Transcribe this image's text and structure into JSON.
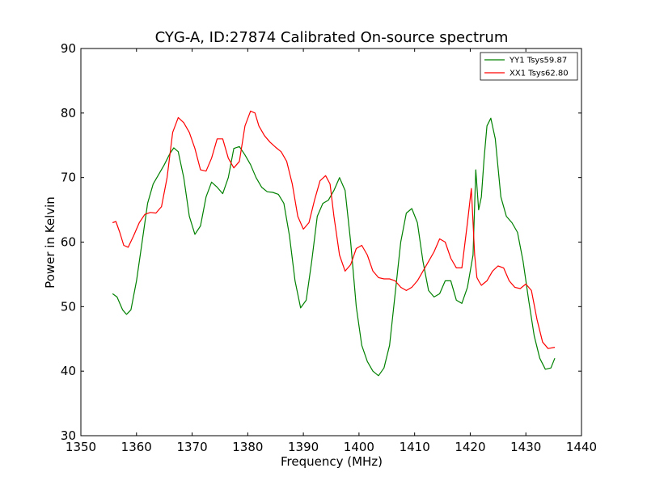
{
  "chart_data": {
    "type": "line",
    "title": "CYG-A, ID:27874 Calibrated On-source spectrum",
    "xlabel": "Frequency (MHz)",
    "ylabel": "Power in Kelvin",
    "xlim": [
      1350,
      1440
    ],
    "ylim": [
      30,
      90
    ],
    "xticks": [
      1350,
      1360,
      1370,
      1380,
      1390,
      1400,
      1410,
      1420,
      1430,
      1440
    ],
    "yticks": [
      30,
      40,
      50,
      60,
      70,
      80,
      90
    ],
    "grid": false,
    "legend_position": "top-right",
    "series": [
      {
        "name": "YY1 Tsys59.87",
        "color": "#008000",
        "x": [
          1355.7,
          1356.5,
          1357.5,
          1358.2,
          1359,
          1360,
          1361,
          1362,
          1363,
          1364,
          1365,
          1366,
          1366.7,
          1367.5,
          1368.5,
          1369.5,
          1370.5,
          1371.5,
          1372.5,
          1373.5,
          1374.5,
          1375.5,
          1376.5,
          1377.5,
          1378.5,
          1379.5,
          1380.5,
          1381.5,
          1382.5,
          1383.5,
          1384.5,
          1385.5,
          1386.5,
          1387.5,
          1388.5,
          1389.5,
          1390.5,
          1391.5,
          1392.5,
          1393.5,
          1394.5,
          1395.5,
          1396.5,
          1397.5,
          1398.5,
          1399.5,
          1400.5,
          1401.5,
          1402.5,
          1403.5,
          1404.5,
          1405.5,
          1406.5,
          1407.5,
          1408.5,
          1409.5,
          1410.5,
          1411.5,
          1412.5,
          1413.5,
          1414.5,
          1415.5,
          1416.5,
          1417.5,
          1418.5,
          1419.5,
          1420.5,
          1421,
          1421.5,
          1422,
          1422.5,
          1423,
          1423.7,
          1424.5,
          1425.5,
          1426.5,
          1427.5,
          1428.5,
          1429.5,
          1430.5,
          1431.5,
          1432.5,
          1433.5,
          1434.5,
          1435.2
        ],
        "y": [
          52,
          51.5,
          49.5,
          48.8,
          49.5,
          54,
          60,
          66,
          69,
          70.5,
          72,
          73.7,
          74.6,
          74,
          70,
          64,
          61.2,
          62.5,
          67,
          69.3,
          68.5,
          67.5,
          70,
          74.5,
          74.8,
          73.5,
          72,
          70,
          68.5,
          67.8,
          67.7,
          67.4,
          66,
          61,
          54,
          49.8,
          51,
          57,
          64,
          66,
          66.5,
          68,
          70,
          68,
          60,
          50,
          44,
          41.5,
          40,
          39.3,
          40.5,
          44,
          52,
          60,
          64.5,
          65.2,
          63,
          57,
          52.5,
          51.5,
          52,
          54,
          54,
          51,
          50.5,
          53,
          58,
          71.2,
          65,
          67,
          73,
          78,
          79.2,
          76,
          67,
          64,
          63,
          61.5,
          57,
          51,
          45.5,
          42,
          40.3,
          40.5,
          42
        ]
      },
      {
        "name": "XX1 Tsys62.80",
        "color": "#ff0000",
        "x": [
          1355.7,
          1356.3,
          1357,
          1357.7,
          1358.5,
          1359.5,
          1360.5,
          1361.5,
          1362.5,
          1363.5,
          1364.5,
          1365.5,
          1366.5,
          1367.5,
          1368.5,
          1369.5,
          1370.5,
          1371.5,
          1372.5,
          1373.5,
          1374.5,
          1375.5,
          1376.5,
          1377.5,
          1378.5,
          1379.5,
          1380.5,
          1381.3,
          1382,
          1383,
          1384,
          1385,
          1386,
          1387,
          1388,
          1389,
          1390,
          1391,
          1392,
          1393,
          1394,
          1394.8,
          1395.5,
          1396.5,
          1397.5,
          1398.5,
          1399.5,
          1400.5,
          1401.5,
          1402.5,
          1403.5,
          1404.5,
          1405.5,
          1406.5,
          1407.5,
          1408.5,
          1409.5,
          1410.5,
          1411.5,
          1412.5,
          1413.5,
          1414.5,
          1415.5,
          1416.5,
          1417.5,
          1418.5,
          1419.5,
          1420.2,
          1420.8,
          1421.2,
          1421.5,
          1422,
          1423,
          1424,
          1425,
          1426,
          1427,
          1428,
          1429,
          1430,
          1431,
          1432,
          1433,
          1434,
          1435.2
        ],
        "y": [
          63,
          63.2,
          61.5,
          59.5,
          59.2,
          61,
          63,
          64.3,
          64.6,
          64.5,
          65.5,
          70,
          77,
          79.3,
          78.5,
          77,
          74.5,
          71.2,
          71,
          73,
          76,
          76,
          73,
          71.5,
          72.5,
          78,
          80.3,
          80,
          78,
          76.5,
          75.5,
          74.7,
          74,
          72.5,
          69,
          64,
          62,
          63,
          66.5,
          69.5,
          70.3,
          69,
          64,
          58,
          55.5,
          56.5,
          59,
          59.5,
          58,
          55.5,
          54.5,
          54.3,
          54.3,
          54,
          53,
          52.5,
          53,
          54,
          55.5,
          57,
          58.5,
          60.5,
          60,
          57.5,
          56,
          56,
          63,
          68.3,
          58,
          54.5,
          54,
          53.3,
          54,
          55.5,
          56.3,
          56,
          54,
          53,
          52.8,
          53.5,
          52.5,
          48,
          44.5,
          43.5,
          43.7
        ]
      }
    ]
  }
}
